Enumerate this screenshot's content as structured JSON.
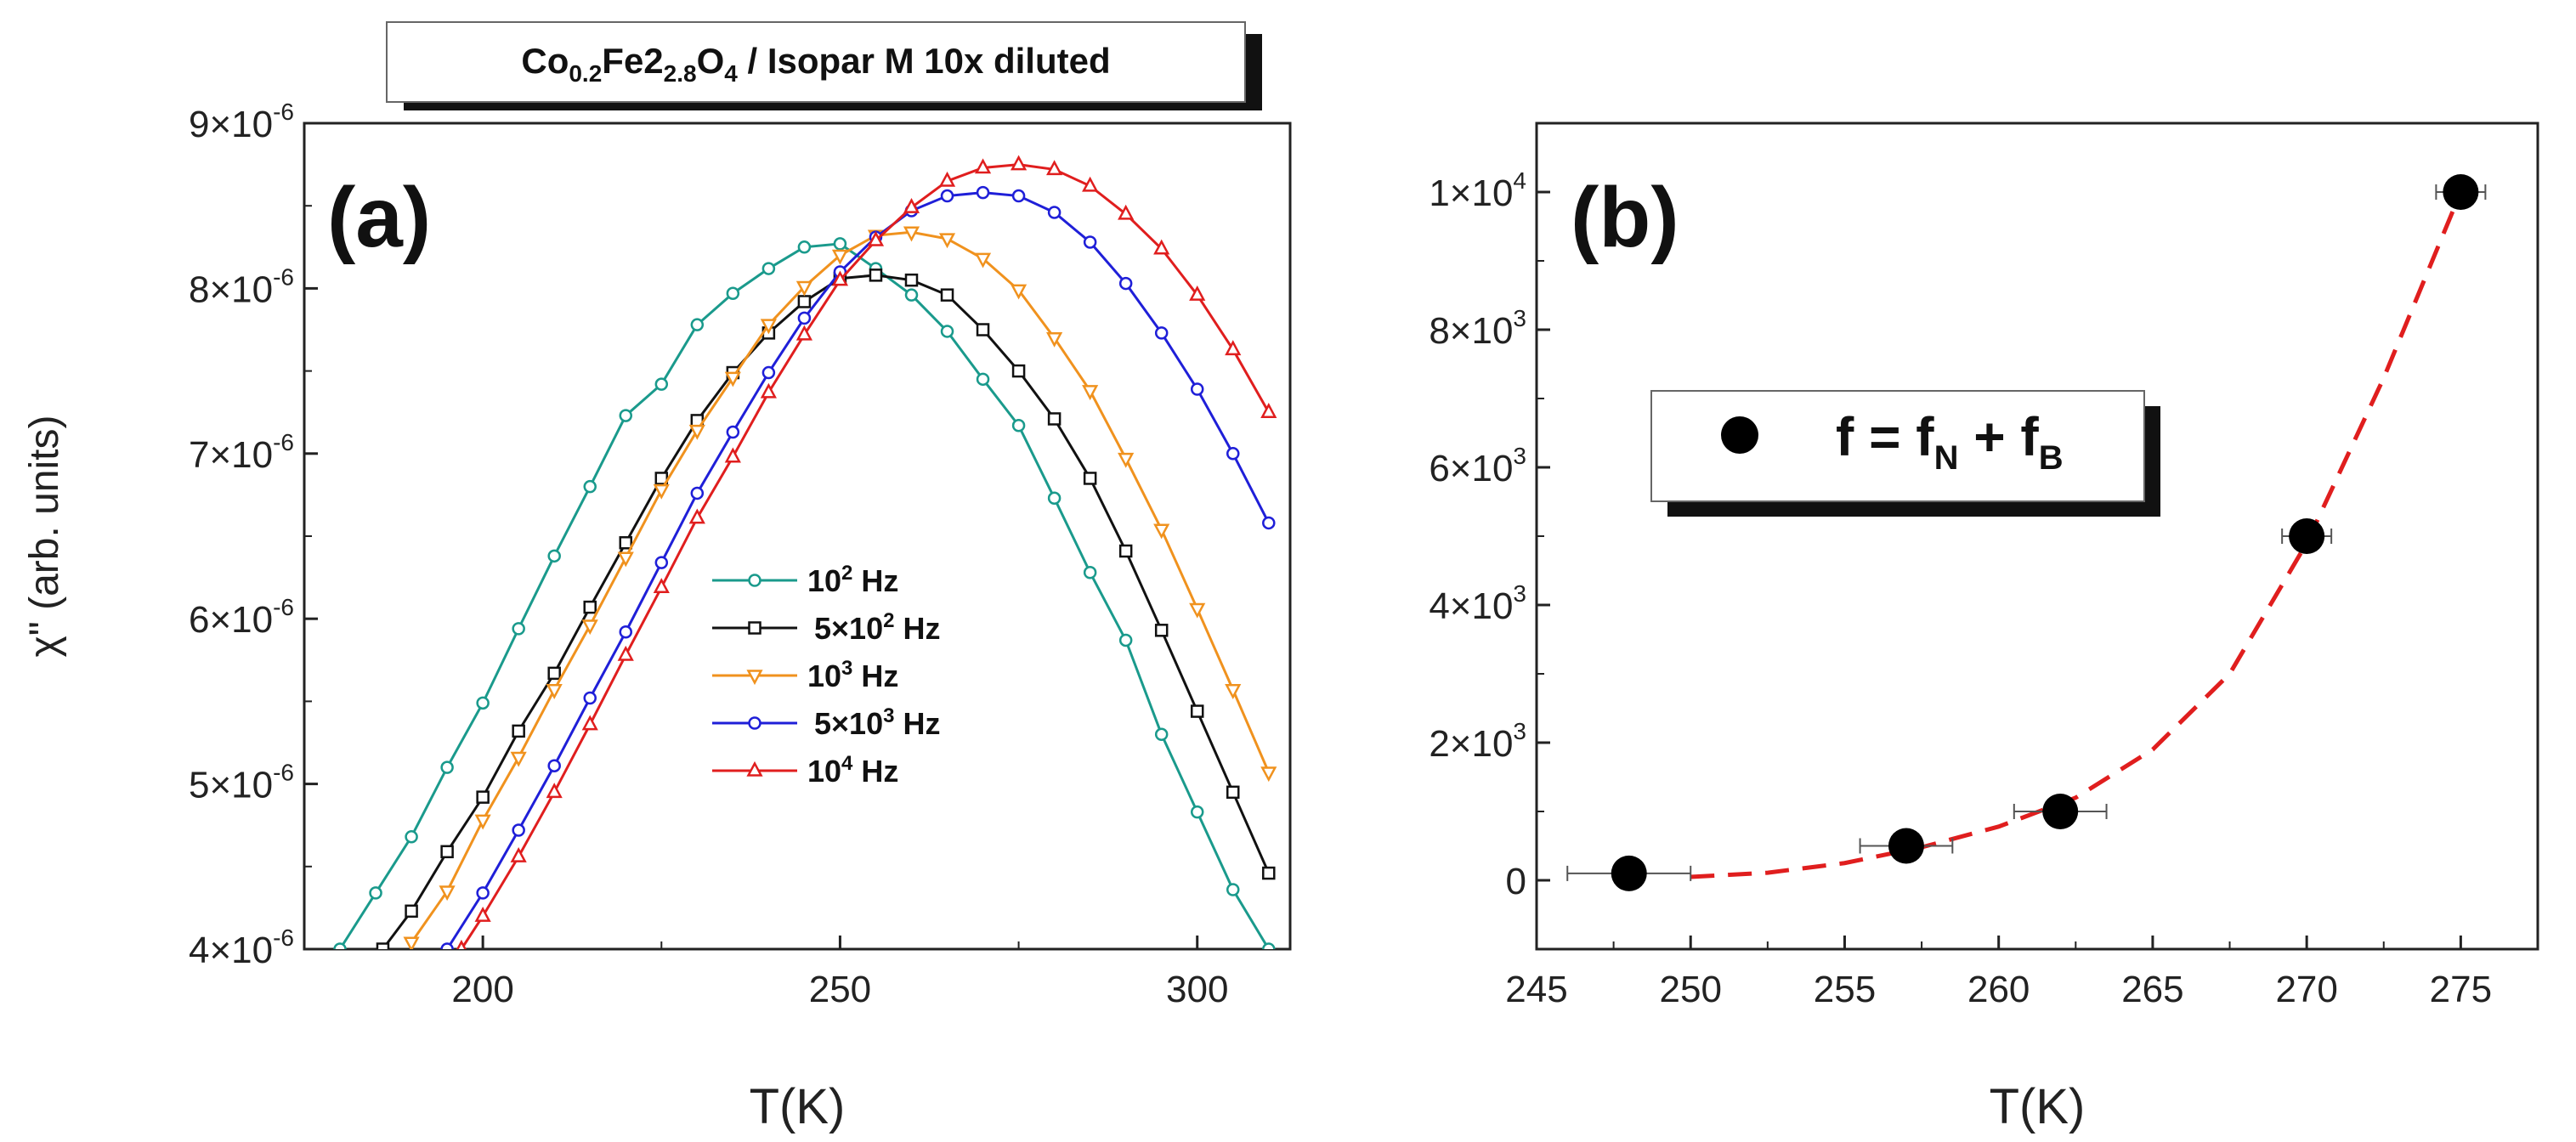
{
  "chart_data": [
    {
      "panel": "(a)",
      "type": "line",
      "title": "Co0.2Fe22.8O4 / Isopar M 10x diluted",
      "title_parts": {
        "a": "Co",
        "a_sub": "0.2",
        "b": "Fe2",
        "b_sub": "2.8",
        "c": "O",
        "c_sub": "4",
        "d": " / Isopar M 10x diluted"
      },
      "xlabel": "T(K)",
      "ylabel": "χ\" (arb. units)",
      "xlim": [
        175,
        313
      ],
      "ylim": [
        4e-06,
        9e-06
      ],
      "xticks": [
        200,
        250,
        300
      ],
      "yticks": [
        {
          "value": 4e-06,
          "mant": "4×10",
          "exp": "-6"
        },
        {
          "value": 5e-06,
          "mant": "5×10",
          "exp": "-6"
        },
        {
          "value": 6e-06,
          "mant": "6×10",
          "exp": "-6"
        },
        {
          "value": 7e-06,
          "mant": "7×10",
          "exp": "-6"
        },
        {
          "value": 8e-06,
          "mant": "8×10",
          "exp": "-6"
        },
        {
          "value": 9e-06,
          "mant": "9×10",
          "exp": "-6"
        }
      ],
      "legend_position": "center-bottom",
      "series": [
        {
          "name": "10^2 Hz",
          "label_main": "10",
          "label_sup": "2",
          "label_tail": " Hz",
          "color": "#1a9a8c",
          "marker": "circle",
          "x": [
            180,
            185,
            190,
            195,
            200,
            205,
            210,
            215,
            220,
            225,
            230,
            235,
            240,
            245,
            250,
            255,
            260,
            265,
            270,
            275,
            280,
            285,
            290,
            295,
            300,
            305,
            310
          ],
          "y": [
            4e-06,
            4.34e-06,
            4.68e-06,
            5.1e-06,
            5.49e-06,
            5.94e-06,
            6.38e-06,
            6.8e-06,
            7.23e-06,
            7.42e-06,
            7.78e-06,
            7.97e-06,
            8.12e-06,
            8.25e-06,
            8.27e-06,
            8.12e-06,
            7.96e-06,
            7.74e-06,
            7.45e-06,
            7.17e-06,
            6.73e-06,
            6.28e-06,
            5.87e-06,
            5.3e-06,
            4.83e-06,
            4.36e-06,
            4e-06
          ]
        },
        {
          "name": "5×10^2 Hz",
          "label_main": "5×10",
          "label_sup": "2",
          "label_tail": " Hz",
          "color": "#111111",
          "marker": "square",
          "x": [
            186,
            190,
            195,
            200,
            205,
            210,
            215,
            220,
            225,
            230,
            235,
            240,
            245,
            250,
            255,
            260,
            265,
            270,
            275,
            280,
            285,
            290,
            295,
            300,
            305,
            310
          ],
          "y": [
            4e-06,
            4.23e-06,
            4.59e-06,
            4.92e-06,
            5.32e-06,
            5.67e-06,
            6.07e-06,
            6.46e-06,
            6.85e-06,
            7.2e-06,
            7.49e-06,
            7.73e-06,
            7.92e-06,
            8.06e-06,
            8.08e-06,
            8.05e-06,
            7.96e-06,
            7.75e-06,
            7.5e-06,
            7.21e-06,
            6.85e-06,
            6.41e-06,
            5.93e-06,
            5.44e-06,
            4.95e-06,
            4.46e-06
          ]
        },
        {
          "name": "10^3 Hz",
          "label_main": "10",
          "label_sup": "3",
          "label_tail": " Hz",
          "color": "#f0921e",
          "marker": "triangle-down",
          "x": [
            190,
            195,
            200,
            205,
            210,
            215,
            220,
            225,
            230,
            235,
            240,
            245,
            250,
            255,
            260,
            265,
            270,
            275,
            280,
            285,
            290,
            295,
            300,
            305,
            310
          ],
          "y": [
            4.04e-06,
            4.35e-06,
            4.78e-06,
            5.16e-06,
            5.57e-06,
            5.96e-06,
            6.37e-06,
            6.78e-06,
            7.14e-06,
            7.46e-06,
            7.78e-06,
            8.01e-06,
            8.2e-06,
            8.32e-06,
            8.34e-06,
            8.3e-06,
            8.18e-06,
            7.99e-06,
            7.7e-06,
            7.38e-06,
            6.97e-06,
            6.54e-06,
            6.06e-06,
            5.57e-06,
            5.07e-06
          ]
        },
        {
          "name": "5×10^3 Hz",
          "label_main": "5×10",
          "label_sup": "3",
          "label_tail": " Hz",
          "color": "#1f1fd8",
          "marker": "circle",
          "x": [
            195,
            200,
            205,
            210,
            215,
            220,
            225,
            230,
            235,
            240,
            245,
            250,
            255,
            260,
            265,
            270,
            275,
            280,
            285,
            290,
            295,
            300,
            305,
            310
          ],
          "y": [
            4e-06,
            4.34e-06,
            4.72e-06,
            5.11e-06,
            5.52e-06,
            5.92e-06,
            6.34e-06,
            6.76e-06,
            7.13e-06,
            7.49e-06,
            7.82e-06,
            8.1e-06,
            8.31e-06,
            8.47e-06,
            8.56e-06,
            8.58e-06,
            8.56e-06,
            8.46e-06,
            8.28e-06,
            8.03e-06,
            7.73e-06,
            7.39e-06,
            7e-06,
            6.58e-06
          ]
        },
        {
          "name": "10^4 Hz",
          "label_main": "10",
          "label_sup": "4",
          "label_tail": " Hz",
          "color": "#e01e1e",
          "marker": "triangle-up",
          "x": [
            197,
            200,
            205,
            210,
            215,
            220,
            225,
            230,
            235,
            240,
            245,
            250,
            255,
            260,
            265,
            270,
            275,
            280,
            285,
            290,
            295,
            300,
            305,
            310
          ],
          "y": [
            4e-06,
            4.2e-06,
            4.56e-06,
            4.95e-06,
            5.36e-06,
            5.78e-06,
            6.19e-06,
            6.61e-06,
            6.98e-06,
            7.37e-06,
            7.72e-06,
            8.05e-06,
            8.29e-06,
            8.49e-06,
            8.65e-06,
            8.73e-06,
            8.75e-06,
            8.72e-06,
            8.62e-06,
            8.45e-06,
            8.24e-06,
            7.96e-06,
            7.63e-06,
            7.25e-06
          ]
        }
      ]
    },
    {
      "panel": "(b)",
      "type": "scatter",
      "xlabel": "T(K)",
      "ylabel": "",
      "xlim": [
        245,
        277.5
      ],
      "ylim": [
        -1000,
        11000
      ],
      "xticks": [
        245,
        250,
        255,
        260,
        265,
        270,
        275
      ],
      "yticks": [
        {
          "value": 0,
          "mant": "0",
          "exp": ""
        },
        {
          "value": 2000,
          "mant": "2×10",
          "exp": "3"
        },
        {
          "value": 4000,
          "mant": "4×10",
          "exp": "3"
        },
        {
          "value": 6000,
          "mant": "6×10",
          "exp": "3"
        },
        {
          "value": 8000,
          "mant": "8×10",
          "exp": "3"
        },
        {
          "value": 10000,
          "mant": "1×10",
          "exp": "4"
        }
      ],
      "legend": {
        "text_main": "f = f",
        "sub1": "N",
        "text_mid": " + f",
        "sub2": "B",
        "position": "center-left"
      },
      "points": {
        "x": [
          248,
          257,
          262,
          270,
          275
        ],
        "y": [
          100,
          500,
          1000,
          5000,
          10000
        ],
        "xerr": [
          2.0,
          1.5,
          1.5,
          0.8,
          0.8
        ],
        "color": "#000000"
      },
      "fit": {
        "color": "#e01e1e",
        "style": "dashed",
        "x": [
          250,
          252.5,
          255,
          257.5,
          260,
          262.5,
          265,
          267.5,
          270,
          272.5,
          275
        ],
        "y": [
          50,
          110,
          250,
          480,
          780,
          1200,
          1900,
          3000,
          4900,
          7300,
          10000
        ]
      }
    }
  ]
}
